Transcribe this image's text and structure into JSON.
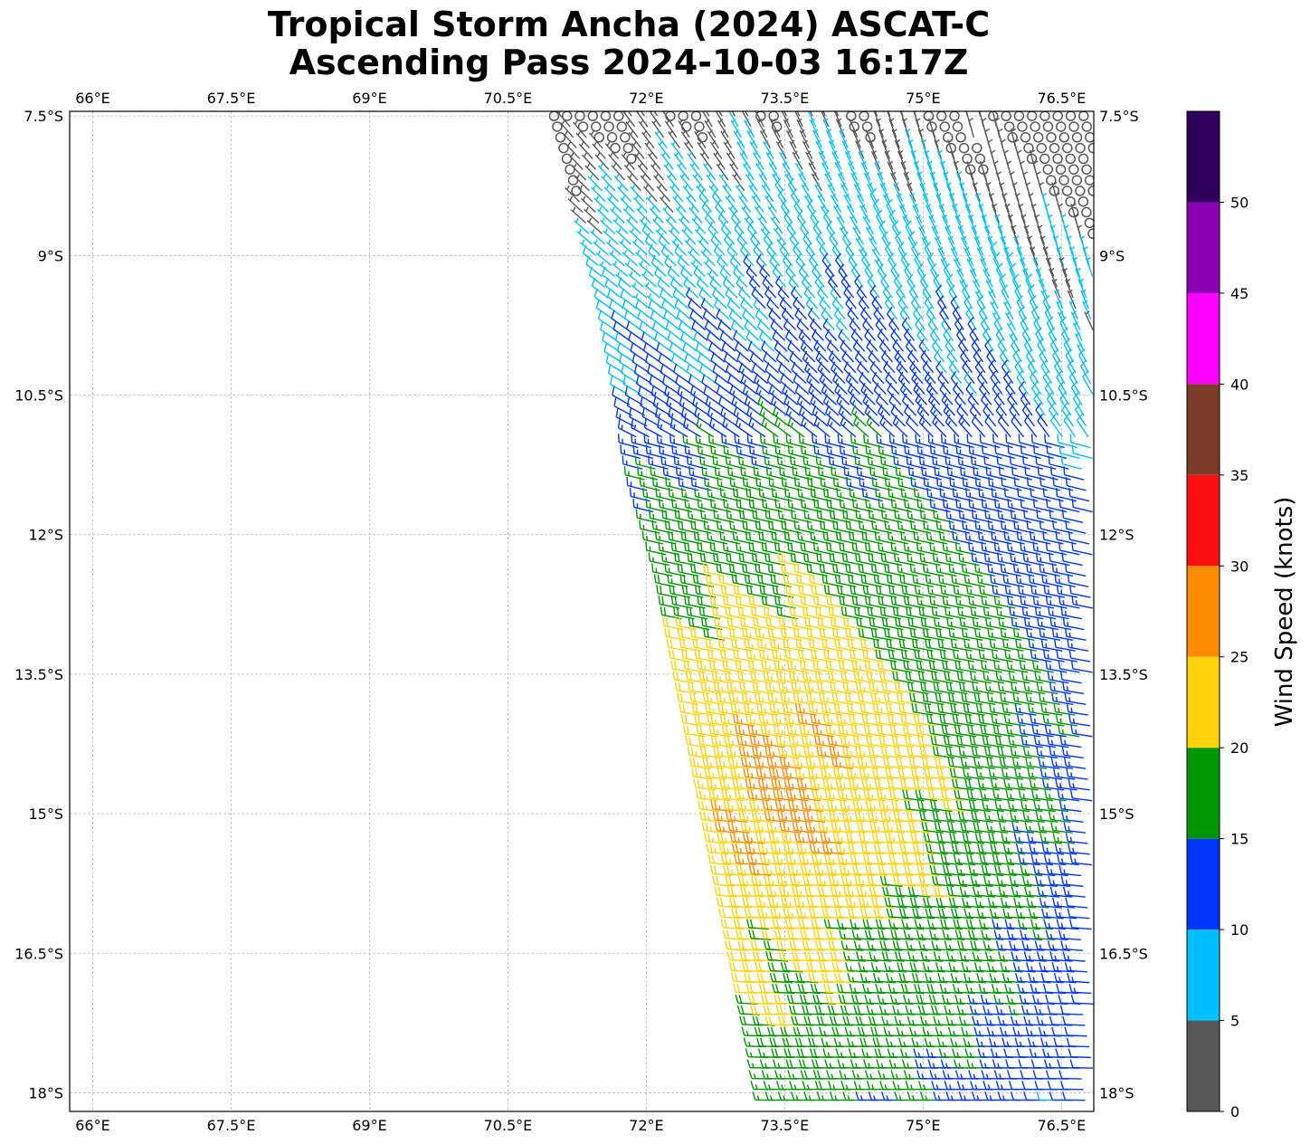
{
  "title_line1": "Tropical Storm Ancha (2024) ASCAT-C",
  "title_line2": "Ascending Pass 2024-10-03 16:17Z",
  "map": {
    "lon_range": [
      65.75,
      76.85
    ],
    "lat_range": [
      -18.2,
      -7.45
    ],
    "lon_ticks": [
      "66°E",
      "67.5°E",
      "69°E",
      "70.5°E",
      "72°E",
      "73.5°E",
      "75°E",
      "76.5°E"
    ],
    "lat_ticks": [
      "7.5°S",
      "9°S",
      "10.5°S",
      "12°S",
      "13.5°S",
      "15°S",
      "16.5°S",
      "18°S"
    ],
    "gridlines": true
  },
  "colorbar": {
    "label": "Wind Speed (knots)",
    "bins": [
      0,
      5,
      10,
      15,
      20,
      25,
      30,
      35,
      40,
      45,
      50,
      55
    ],
    "colors": [
      "#585858",
      "#00bfff",
      "#0036ff",
      "#009600",
      "#ffd20a",
      "#ff8c00",
      "#ff1010",
      "#7c3c2a",
      "#ff00ff",
      "#8c00b4",
      "#2e005c"
    ],
    "tick_labels": [
      "0",
      "5",
      "10",
      "15",
      "20",
      "25",
      "30",
      "35",
      "40",
      "45",
      "50"
    ]
  },
  "wind_field": {
    "description_units": "knots",
    "swath_west_edge": [
      [
        71.0,
        -7.5
      ],
      [
        71.3,
        -8.5
      ],
      [
        71.6,
        -9.5
      ],
      [
        71.8,
        -10.5
      ],
      [
        72.0,
        -11.5
      ],
      [
        72.3,
        -12.5
      ],
      [
        72.5,
        -13.5
      ],
      [
        72.7,
        -14.5
      ],
      [
        72.9,
        -15.5
      ],
      [
        73.1,
        -16.5
      ],
      [
        73.3,
        -17.5
      ],
      [
        73.4,
        -18.1
      ]
    ],
    "swath_east_edge": 76.85,
    "calm_center": [
      71.8,
      -7.9
    ],
    "max_wind_center": [
      73.6,
      -14.8
    ]
  }
}
